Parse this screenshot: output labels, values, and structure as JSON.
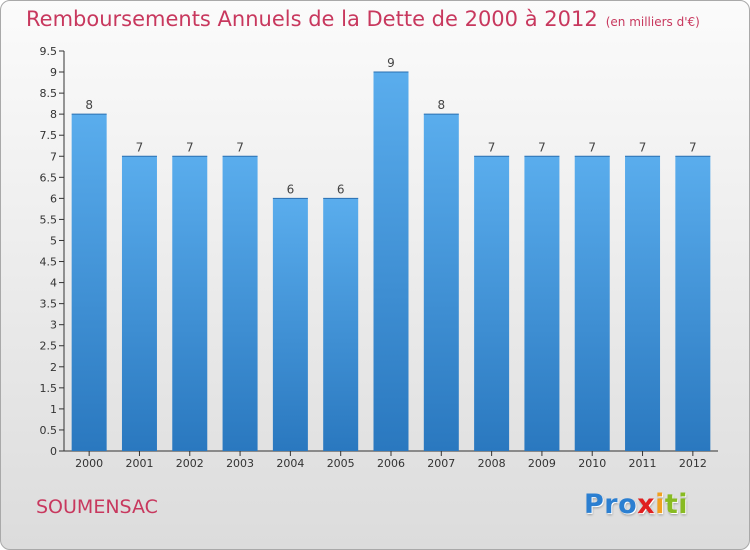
{
  "title": "Remboursements Annuels de la Dette de 2000 à 2012",
  "unit": "(en milliers d'€)",
  "commune": "SOUMENSAC",
  "logo": "Proxiti",
  "chart_data": {
    "type": "bar",
    "title": "Remboursements Annuels de la Dette de 2000 à 2012",
    "subtitle": "(en milliers d'€)",
    "categories": [
      "2000",
      "2001",
      "2002",
      "2003",
      "2004",
      "2005",
      "2006",
      "2007",
      "2008",
      "2009",
      "2010",
      "2011",
      "2012"
    ],
    "values": [
      8,
      7,
      7,
      7,
      6,
      6,
      9,
      8,
      7,
      7,
      7,
      7,
      7
    ],
    "data_labels": [
      "8",
      "7",
      "7",
      "7",
      "6",
      "6",
      "9",
      "8",
      "7",
      "7",
      "7",
      "7",
      "7"
    ],
    "y_ticks": [
      "0",
      "0.5",
      "1",
      "1.5",
      "2",
      "2.5",
      "3",
      "3.5",
      "4",
      "4.5",
      "5",
      "5.5",
      "6",
      "6.5",
      "7",
      "7.5",
      "8",
      "8.5",
      "9",
      "9.5"
    ],
    "ylim": [
      0,
      9.5
    ],
    "grid": false,
    "bar_color": "#4a9fe3"
  }
}
